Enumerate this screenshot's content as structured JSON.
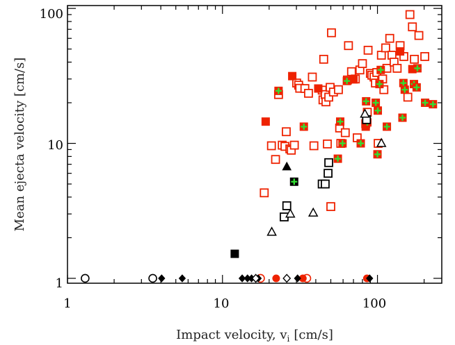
{
  "chart_data": {
    "type": "scatter",
    "xscale": "log",
    "yscale": "log",
    "xlim": [
      1,
      260
    ],
    "ylim": [
      0.92,
      105
    ],
    "xlabel": "Impact velocity, v",
    "xlabel_sub": "i",
    "xlabel_units": "[cm/s]",
    "ylabel": "Mean ejecta velocity [cm/s]",
    "xticks": [
      {
        "value": 1,
        "label": "1"
      },
      {
        "value": 10,
        "label": "10"
      },
      {
        "value": 100,
        "label": "100"
      }
    ],
    "yticks": [
      {
        "value": 1,
        "label": "1"
      },
      {
        "value": 10,
        "label": "10"
      },
      {
        "value": 100,
        "label": "100"
      }
    ],
    "colors": {
      "red": "#ee2200",
      "green": "#33dd33",
      "black": "#000000"
    },
    "series": [
      {
        "marker": "open-square",
        "color": "red",
        "points": [
          [
            18.6,
            4.3
          ],
          [
            20.7,
            9.6
          ],
          [
            22.0,
            7.6
          ],
          [
            23.0,
            23.0
          ],
          [
            24.3,
            9.7
          ],
          [
            25.3,
            9.5
          ],
          [
            25.8,
            12.2
          ],
          [
            27.2,
            9.1
          ],
          [
            27.8,
            8.9
          ],
          [
            29.1,
            9.7
          ],
          [
            30.1,
            28.0
          ],
          [
            31.0,
            27.0
          ],
          [
            31.5,
            25.6
          ],
          [
            34.0,
            25.5
          ],
          [
            35.9,
            23.5
          ],
          [
            38.0,
            31.0
          ],
          [
            38.9,
            9.6
          ],
          [
            44.0,
            24.8
          ],
          [
            44.5,
            21.0
          ],
          [
            45.0,
            42.0
          ],
          [
            46.0,
            23.0
          ],
          [
            46.5,
            20.3
          ],
          [
            47.5,
            9.9
          ],
          [
            48.5,
            22.0
          ],
          [
            49.5,
            26.0
          ],
          [
            50.0,
            3.4
          ],
          [
            50.5,
            66.0
          ],
          [
            52.0,
            24.0
          ],
          [
            56.0,
            25.0
          ],
          [
            57.0,
            13.0
          ],
          [
            58.0,
            10.0
          ],
          [
            62.0,
            12.0
          ],
          [
            64.0,
            29.5
          ],
          [
            65.0,
            53.0
          ],
          [
            68.0,
            34.0
          ],
          [
            72.0,
            30.0
          ],
          [
            74.0,
            11.0
          ],
          [
            77.0,
            35.0
          ],
          [
            80.0,
            39.0
          ],
          [
            84.0,
            14.0
          ],
          [
            86.0,
            17.0
          ],
          [
            87.0,
            49.0
          ],
          [
            90.0,
            33.0
          ],
          [
            92.0,
            32.0
          ],
          [
            95.0,
            31.0
          ],
          [
            97.0,
            28.0
          ],
          [
            99.0,
            33.5
          ],
          [
            101.0,
            10.0
          ],
          [
            106.0,
            45.0
          ],
          [
            108.0,
            30.0
          ],
          [
            110.0,
            25.0
          ],
          [
            113.0,
            51.0
          ],
          [
            115.0,
            36.0
          ],
          [
            120.0,
            60.0
          ],
          [
            124.0,
            45.0
          ],
          [
            128.0,
            40.0
          ],
          [
            134.0,
            36.0
          ],
          [
            140.0,
            53.0
          ],
          [
            148.0,
            44.0
          ],
          [
            157.0,
            22.0
          ],
          [
            162.0,
            90.0
          ],
          [
            168.0,
            73.0
          ],
          [
            173.0,
            42.0
          ],
          [
            185.0,
            63.0
          ],
          [
            202.0,
            44.0
          ]
        ]
      },
      {
        "marker": "filled-square",
        "color": "red",
        "points": [
          [
            19.0,
            14.5
          ],
          [
            28.2,
            31.5
          ],
          [
            41.5,
            25.5
          ],
          [
            70.0,
            29.8
          ],
          [
            84.0,
            13.3
          ],
          [
            140.0,
            48.0
          ],
          [
            168.0,
            35.5
          ]
        ]
      },
      {
        "marker": "filled-square-cross",
        "color": "red",
        "cross_color": "green",
        "points": [
          [
            23.0,
            24.5
          ],
          [
            33.5,
            13.3
          ],
          [
            55.5,
            7.7
          ],
          [
            57.5,
            14.5
          ],
          [
            59.5,
            10.0
          ],
          [
            63.5,
            29.0
          ],
          [
            78.0,
            10.0
          ],
          [
            84.5,
            20.5
          ],
          [
            86.0,
            14.3
          ],
          [
            97.5,
            20.0
          ],
          [
            100.0,
            8.3
          ],
          [
            100.5,
            17.5
          ],
          [
            103.0,
            27.5
          ],
          [
            105.0,
            35.0
          ],
          [
            115.0,
            13.3
          ],
          [
            145.0,
            15.5
          ],
          [
            147.0,
            28.0
          ],
          [
            150.0,
            25.0
          ],
          [
            172.0,
            27.5
          ],
          [
            179.0,
            26.0
          ],
          [
            181.0,
            36.0
          ],
          [
            203.0,
            20.0
          ],
          [
            228.0,
            19.5
          ]
        ]
      },
      {
        "marker": "filled-square-cross",
        "color": "black",
        "cross_color": "green",
        "points": [
          [
            29.0,
            5.2
          ]
        ]
      },
      {
        "marker": "open-square",
        "color": "black",
        "points": [
          [
            25.0,
            2.85
          ],
          [
            26.0,
            3.45
          ],
          [
            44.0,
            5.0
          ],
          [
            46.0,
            5.0
          ],
          [
            48.0,
            6.0
          ],
          [
            48.5,
            7.2
          ],
          [
            85.0,
            15.0
          ]
        ]
      },
      {
        "marker": "filled-square",
        "color": "black",
        "points": [
          [
            12.0,
            1.52
          ]
        ]
      },
      {
        "marker": "open-triangle",
        "color": "black",
        "points": [
          [
            20.8,
            2.2
          ],
          [
            27.4,
            3.0
          ],
          [
            38.5,
            3.05
          ],
          [
            83.0,
            16.5
          ],
          [
            106.0,
            10.0
          ]
        ]
      },
      {
        "marker": "filled-triangle",
        "color": "black",
        "points": [
          [
            26.0,
            6.7
          ]
        ]
      },
      {
        "marker": "open-circle",
        "color": "black",
        "points": [
          [
            1.3,
            1.0
          ],
          [
            3.55,
            1.0
          ]
        ]
      },
      {
        "marker": "open-circle",
        "color": "red",
        "points": [
          [
            17.6,
            1.0
          ],
          [
            35.0,
            1.0
          ]
        ]
      },
      {
        "marker": "filled-circle",
        "color": "red",
        "points": [
          [
            22.2,
            1.0
          ],
          [
            33.0,
            1.0
          ],
          [
            85.5,
            1.0
          ]
        ]
      },
      {
        "marker": "filled-diamond",
        "color": "black",
        "points": [
          [
            4.05,
            1.0
          ],
          [
            5.5,
            1.0
          ],
          [
            13.4,
            1.0
          ],
          [
            14.5,
            1.0
          ],
          [
            15.4,
            1.0
          ],
          [
            17.0,
            1.0
          ],
          [
            30.5,
            1.0
          ],
          [
            89.0,
            1.0
          ]
        ]
      },
      {
        "marker": "open-diamond",
        "color": "black",
        "points": [
          [
            16.4,
            1.0
          ],
          [
            26.0,
            1.0
          ]
        ]
      }
    ]
  }
}
